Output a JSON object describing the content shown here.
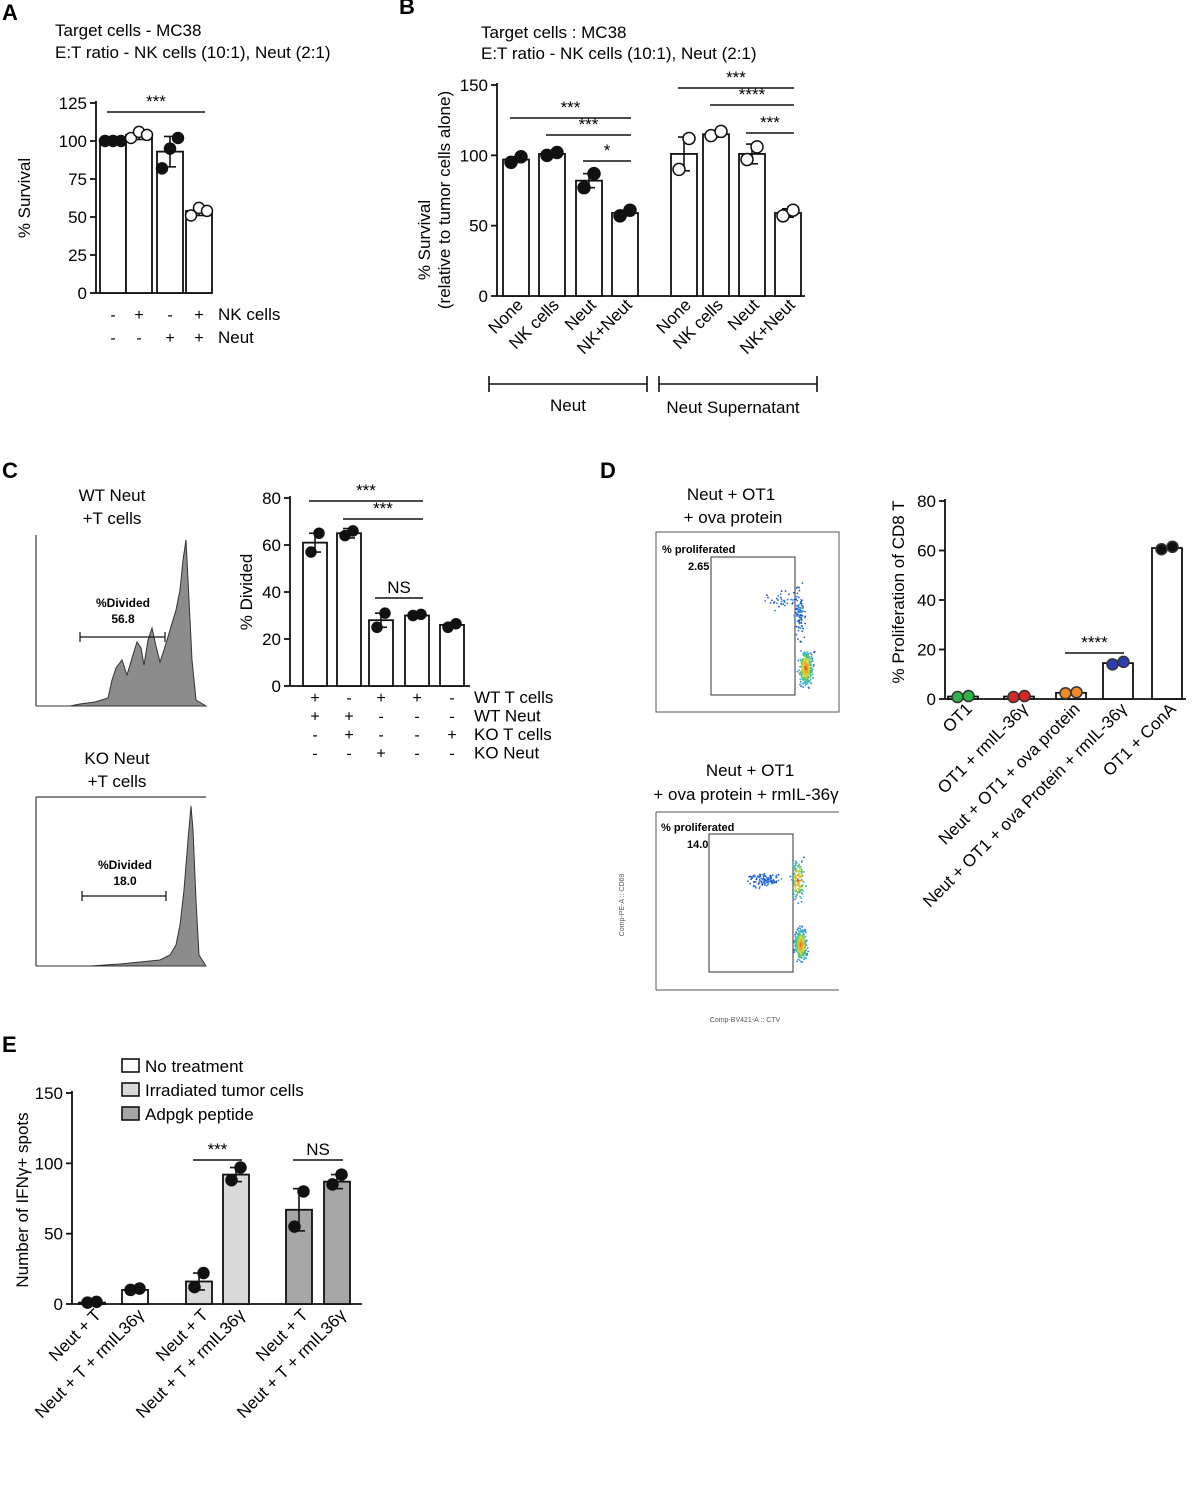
{
  "panels": {
    "A": {
      "letter": "A",
      "title1": "Target cells - MC38",
      "title2": "E:T ratio - NK cells (10:1), Neut (2:1)"
    },
    "B": {
      "letter": "B",
      "title1": "Target cells : MC38",
      "title2": "E:T ratio - NK cells (10:1), Neut (2:1)",
      "group1": "Neut",
      "group2": "Neut Supernatant"
    },
    "C": {
      "letter": "C",
      "hist1_title1": "WT Neut",
      "hist1_title2": "+T cells",
      "hist1_gate_label": "%Divided",
      "hist1_gate_value": "56.8",
      "hist2_title1": "KO Neut",
      "hist2_title2": "+T cells",
      "hist2_gate_label": "%Divided",
      "hist2_gate_value": "18.0"
    },
    "D": {
      "letter": "D",
      "flow1_title1": "Neut + OT1",
      "flow1_title2": "+ ova protein",
      "flow1_gate_label": "% proliferated",
      "flow1_gate_value": "2.65",
      "flow2_title1": "Neut + OT1",
      "flow2_title2": "+ ova protein + rmIL-36γ",
      "flow2_gate_label": "% proliferated",
      "flow2_gate_value": "14.0",
      "flow_xlabel": "Comp-BV421-A :: CTV",
      "flow_ylabel": "Comp-PE-A :: CD69"
    },
    "E": {
      "letter": "E"
    }
  },
  "chart_data": [
    {
      "id": "A",
      "type": "bar",
      "ylabel": "% Survival",
      "ylim": [
        0,
        125
      ],
      "yticks": [
        0,
        25,
        50,
        75,
        100,
        125
      ],
      "row_labels": [
        "NK cells",
        "Neut"
      ],
      "conditions": [
        [
          "-",
          "-"
        ],
        [
          "+",
          "-"
        ],
        [
          "-",
          "+"
        ],
        [
          "+",
          "+"
        ]
      ],
      "values": [
        100,
        104,
        93,
        54
      ],
      "errors": [
        1,
        3,
        10,
        3
      ],
      "points": [
        [
          100,
          100,
          100
        ],
        [
          102,
          106,
          104
        ],
        [
          82,
          95,
          102
        ],
        [
          51,
          56,
          54
        ]
      ],
      "point_style": [
        "filled",
        "open",
        "filled",
        "open"
      ],
      "significance": [
        {
          "from": 0,
          "to": 3,
          "label": "***"
        }
      ]
    },
    {
      "id": "B",
      "type": "bar",
      "ylabel": "% Survival",
      "ylabel2": "(relative to tumor cells alone)",
      "ylim": [
        0,
        150
      ],
      "yticks": [
        0,
        50,
        100,
        150
      ],
      "categories": [
        "None",
        "NK cells",
        "Neut",
        "NK+Neut",
        "None",
        "NK cells",
        "Neut",
        "NK+Neut"
      ],
      "groups": [
        "Neut",
        "Neut Supernatant"
      ],
      "values": [
        97,
        101,
        82,
        59,
        101,
        115,
        101,
        59
      ],
      "errors": [
        2,
        1,
        5,
        2,
        12,
        2,
        7,
        3
      ],
      "points": [
        [
          95,
          99
        ],
        [
          100,
          102
        ],
        [
          77,
          87
        ],
        [
          57,
          61
        ],
        [
          90,
          112
        ],
        [
          114,
          117
        ],
        [
          97,
          106
        ],
        [
          57,
          61
        ]
      ],
      "point_style": [
        "filled",
        "filled",
        "filled",
        "filled",
        "open",
        "open",
        "open",
        "open"
      ],
      "significance": [
        {
          "from": 0,
          "to": 3,
          "label": "***"
        },
        {
          "from": 1,
          "to": 3,
          "label": "***"
        },
        {
          "from": 2,
          "to": 3,
          "label": "*"
        },
        {
          "from": 4,
          "to": 7,
          "label": "***"
        },
        {
          "from": 5,
          "to": 7,
          "label": "****"
        },
        {
          "from": 6,
          "to": 7,
          "label": "***"
        }
      ]
    },
    {
      "id": "C",
      "type": "bar",
      "ylabel": "% Divided",
      "ylim": [
        0,
        80
      ],
      "yticks": [
        0,
        20,
        40,
        60,
        80
      ],
      "row_labels": [
        "WT T cells",
        "WT Neut",
        "KO T cells",
        "KO Neut"
      ],
      "conditions": [
        [
          "+",
          "-",
          "+",
          "+",
          "-"
        ],
        [
          "+",
          "+",
          "-",
          "-",
          "-"
        ],
        [
          "-",
          "+",
          "-",
          "-",
          "+"
        ],
        [
          "-",
          "-",
          "+",
          "-",
          "-"
        ]
      ],
      "values": [
        61,
        65,
        28,
        30,
        26
      ],
      "errors": [
        4,
        2,
        3,
        0.5,
        1
      ],
      "points": [
        [
          57,
          65
        ],
        [
          64,
          66
        ],
        [
          25,
          31
        ],
        [
          30,
          30.5
        ],
        [
          25,
          26.5
        ]
      ],
      "point_style": [
        "filled",
        "filled",
        "filled",
        "filled",
        "filled"
      ],
      "significance": [
        {
          "from": 0,
          "to": 3,
          "label": "***"
        },
        {
          "from": 1,
          "to": 3,
          "label": "***"
        },
        {
          "from": 2,
          "to": 3,
          "label": "NS"
        }
      ]
    },
    {
      "id": "D",
      "type": "bar",
      "ylabel": "% Proliferation of CD8 T",
      "ylim": [
        0,
        80
      ],
      "yticks": [
        0,
        20,
        40,
        60,
        80
      ],
      "categories": [
        "OT1",
        "OT1 + rmIL-36γ",
        "Neut + OT1 + ova protein",
        "Neut + OT1 + ova Protein + rmIL-36γ",
        "OT1 + ConA"
      ],
      "values": [
        1,
        1,
        2.5,
        14.5,
        61
      ],
      "errors": [
        0.3,
        0.3,
        0.3,
        0.5,
        0.7
      ],
      "points": [
        [
          0.8,
          1.2
        ],
        [
          0.8,
          1.2
        ],
        [
          2.3,
          2.7
        ],
        [
          14,
          15
        ],
        [
          60.5,
          61.5
        ]
      ],
      "point_colors": [
        "#2db34a",
        "#d62727",
        "#f08a24",
        "#2b3fb0",
        "#111111"
      ],
      "significance": [
        {
          "from": 2,
          "to": 3,
          "label": "****"
        }
      ]
    },
    {
      "id": "E",
      "type": "bar",
      "ylabel": "Number of IFNγ+ spots",
      "ylim": [
        0,
        150
      ],
      "yticks": [
        0,
        50,
        100,
        150
      ],
      "categories": [
        "Neut + T",
        "Neut + T + rmIL36γ",
        "Neut + T",
        "Neut + T + rmIL36γ",
        "Neut + T",
        "Neut + T + rmIL36γ"
      ],
      "series": [
        {
          "name": "No treatment",
          "color": "#ffffff",
          "indices": [
            0,
            1
          ]
        },
        {
          "name": "Irradiated tumor cells",
          "color": "#d9d9d9",
          "indices": [
            2,
            3
          ]
        },
        {
          "name": "Adpgk peptide",
          "color": "#a6a6a6",
          "indices": [
            4,
            5
          ]
        }
      ],
      "values": [
        1,
        10,
        16,
        92,
        67,
        87
      ],
      "errors": [
        0.5,
        2,
        6,
        5,
        15,
        5
      ],
      "points": [
        [
          1,
          1.5
        ],
        [
          10,
          11
        ],
        [
          12,
          22
        ],
        [
          88,
          97
        ],
        [
          55,
          80
        ],
        [
          85,
          92
        ]
      ],
      "significance": [
        {
          "from": 2,
          "to": 3,
          "label": "***"
        },
        {
          "from": 4,
          "to": 5,
          "label": "NS"
        }
      ]
    }
  ]
}
